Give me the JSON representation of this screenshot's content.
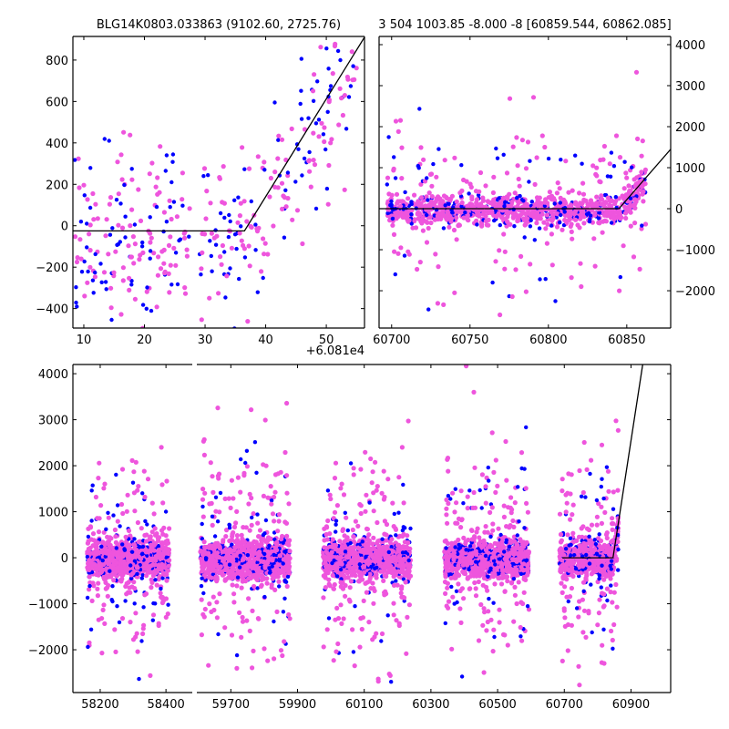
{
  "chart_data": [
    {
      "type": "scatter",
      "id": "top-left",
      "title": "BLG14K0803.033863 (9102.60, 2725.76)",
      "x_offset_label": "+6.081e4",
      "xlim": [
        8.2,
        56.3
      ],
      "ylim": [
        -494,
        914
      ],
      "xticks": [
        10,
        20,
        30,
        40,
        50
      ],
      "yticks": [
        -400,
        -200,
        0,
        200,
        400,
        600,
        800
      ],
      "yaxis_side": "left",
      "model_line": [
        [
          8.2,
          -25
        ],
        [
          36.5,
          -25
        ],
        [
          56.3,
          910
        ]
      ],
      "clusters": [
        {
          "x_range": [
            8.5,
            27.5
          ],
          "n_blue": 70,
          "n_pink": 110,
          "sigma": 190,
          "outlier_sigma": 280
        },
        {
          "x_range": [
            29,
            55
          ],
          "n_blue": 80,
          "n_pink": 120,
          "sigma": 190,
          "outlier_sigma": 300
        }
      ]
    },
    {
      "type": "scatter",
      "id": "top-right",
      "title": "3 504 1003.85 -8.000 -8 [60859.544, 60862.085]",
      "xlim": [
        60692,
        60878
      ],
      "ylim": [
        -2910,
        4200
      ],
      "xticks": [
        60700,
        60750,
        60800,
        60850
      ],
      "yticks": [
        -2000,
        -1000,
        0,
        1000,
        2000,
        3000,
        4000
      ],
      "yaxis_side": "right",
      "model_line": [
        [
          60692,
          0
        ],
        [
          60845,
          0
        ],
        [
          60878,
          1450
        ]
      ],
      "clusters": [
        {
          "x_range": [
            60697,
            60862
          ],
          "n_blue": 260,
          "n_pink": 900,
          "sigma": 180,
          "outlier_sigma": 1100
        }
      ]
    },
    {
      "type": "scatter",
      "id": "bottom",
      "title": "",
      "xlim_segments": [
        [
          58117,
          58480
        ],
        [
          59598,
          61019
        ]
      ],
      "ylim": [
        -2930,
        4200
      ],
      "xticks": [
        58200,
        58400,
        59700,
        59900,
        60100,
        60300,
        60500,
        60700,
        60900
      ],
      "yticks": [
        -2000,
        -1000,
        0,
        1000,
        2000,
        3000,
        4000
      ],
      "yaxis_side": "left",
      "model_line": [
        [
          60694,
          0
        ],
        [
          60846,
          0
        ],
        [
          60935,
          4200
        ]
      ],
      "clusters": [
        {
          "x_range": [
            58161,
            58410
          ],
          "n_blue": 260,
          "n_pink": 900,
          "sigma": 190,
          "outlier_sigma": 1100
        },
        {
          "x_range": [
            59609,
            59877
          ],
          "n_blue": 260,
          "n_pink": 900,
          "sigma": 220,
          "outlier_sigma": 1300
        },
        {
          "x_range": [
            59977,
            60239
          ],
          "n_blue": 260,
          "n_pink": 900,
          "sigma": 200,
          "outlier_sigma": 1100
        },
        {
          "x_range": [
            60340,
            60594
          ],
          "n_blue": 260,
          "n_pink": 900,
          "sigma": 200,
          "outlier_sigma": 1100
        },
        {
          "x_range": [
            60686,
            60862
          ],
          "n_blue": 200,
          "n_pink": 650,
          "sigma": 180,
          "outlier_sigma": 1100
        }
      ]
    }
  ],
  "colors": {
    "blue": "#0000ff",
    "pink": "#ee55dd",
    "line": "#000000"
  }
}
